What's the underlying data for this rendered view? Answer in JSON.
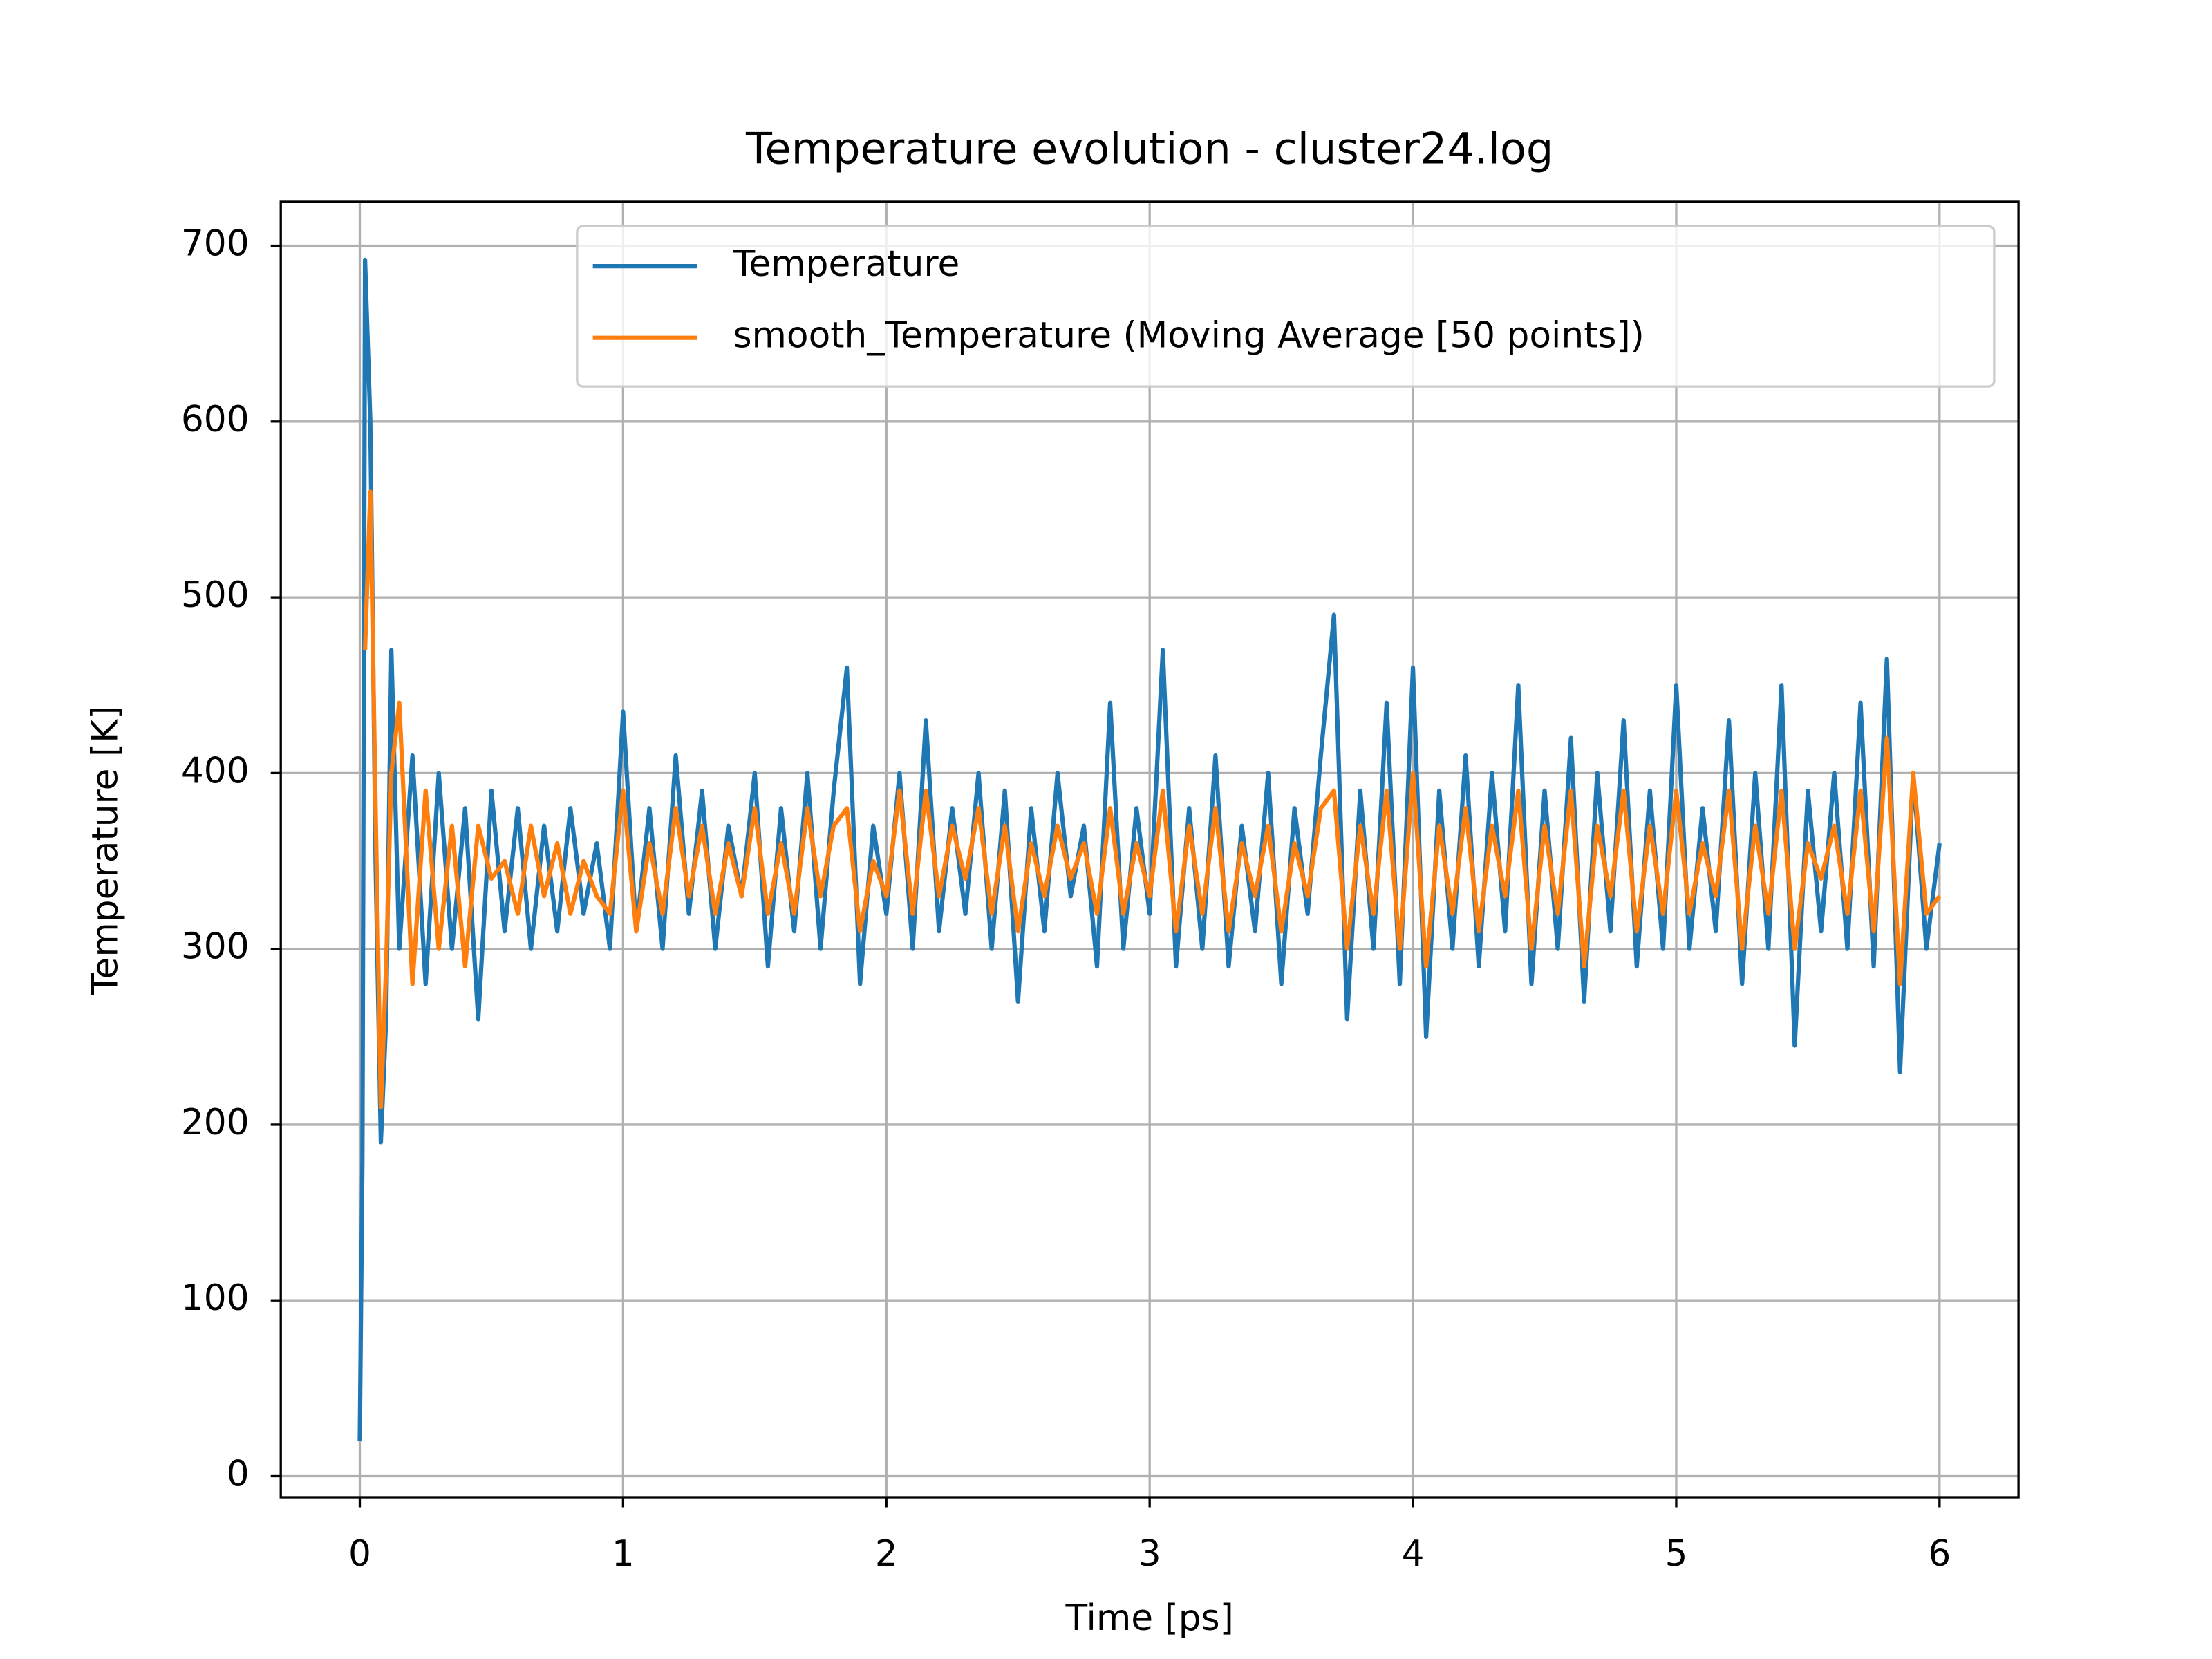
{
  "chart_data": {
    "type": "line",
    "title": "Temperature evolution - cluster24.log",
    "x_label": "Time [ps]",
    "y_label": "Temperature [K]",
    "xlim": [
      -0.3,
      6.3
    ],
    "ylim": [
      -12,
      725
    ],
    "xticks": [
      0,
      1,
      2,
      3,
      4,
      5,
      6
    ],
    "yticks": [
      0,
      100,
      200,
      300,
      400,
      500,
      600,
      700
    ],
    "grid": true,
    "legend": "upper right",
    "x": [
      0,
      0.01,
      0.02,
      0.04,
      0.06,
      0.08,
      0.1,
      0.12,
      0.15,
      0.2,
      0.25,
      0.3,
      0.35,
      0.4,
      0.45,
      0.5,
      0.55,
      0.6,
      0.65,
      0.7,
      0.75,
      0.8,
      0.85,
      0.9,
      0.95,
      1.0,
      1.05,
      1.1,
      1.15,
      1.2,
      1.25,
      1.3,
      1.35,
      1.4,
      1.45,
      1.5,
      1.55,
      1.6,
      1.65,
      1.7,
      1.75,
      1.8,
      1.85,
      1.9,
      1.95,
      2.0,
      2.05,
      2.1,
      2.15,
      2.2,
      2.25,
      2.3,
      2.35,
      2.4,
      2.45,
      2.5,
      2.55,
      2.6,
      2.65,
      2.7,
      2.75,
      2.8,
      2.85,
      2.9,
      2.95,
      3.0,
      3.05,
      3.1,
      3.15,
      3.2,
      3.25,
      3.3,
      3.35,
      3.4,
      3.45,
      3.5,
      3.55,
      3.6,
      3.65,
      3.7,
      3.75,
      3.8,
      3.85,
      3.9,
      3.95,
      4.0,
      4.05,
      4.1,
      4.15,
      4.2,
      4.25,
      4.3,
      4.35,
      4.4,
      4.45,
      4.5,
      4.55,
      4.6,
      4.65,
      4.7,
      4.75,
      4.8,
      4.85,
      4.9,
      4.95,
      5.0,
      5.05,
      5.1,
      5.15,
      5.2,
      5.25,
      5.3,
      5.35,
      5.4,
      5.45,
      5.5,
      5.55,
      5.6,
      5.65,
      5.7,
      5.75,
      5.8,
      5.85,
      5.9,
      5.95,
      6.0
    ],
    "series": [
      {
        "name": "Temperature",
        "color": "#1f77b4",
        "values": [
          20,
          180,
          692,
          600,
          350,
          190,
          260,
          470,
          300,
          410,
          280,
          400,
          300,
          380,
          260,
          390,
          310,
          380,
          300,
          370,
          310,
          380,
          320,
          360,
          300,
          435,
          310,
          380,
          300,
          410,
          320,
          390,
          300,
          370,
          330,
          400,
          290,
          380,
          310,
          400,
          300,
          390,
          460,
          280,
          370,
          320,
          400,
          300,
          430,
          310,
          380,
          320,
          400,
          300,
          390,
          270,
          380,
          310,
          400,
          330,
          370,
          290,
          440,
          300,
          380,
          320,
          470,
          290,
          380,
          300,
          410,
          290,
          370,
          310,
          400,
          280,
          380,
          320,
          410,
          490,
          260,
          390,
          300,
          440,
          280,
          460,
          250,
          390,
          300,
          410,
          290,
          400,
          310,
          450,
          280,
          390,
          300,
          420,
          270,
          400,
          310,
          430,
          290,
          390,
          300,
          450,
          300,
          380,
          310,
          430,
          280,
          400,
          300,
          450,
          245,
          390,
          310,
          400,
          300,
          440,
          290,
          465,
          230,
          400,
          300,
          360
        ]
      },
      {
        "name": "smooth_Temperature (Moving Average [50 points])",
        "color": "#ff7f0e",
        "values": [
          null,
          null,
          470,
          560,
          380,
          210,
          290,
          400,
          440,
          280,
          390,
          300,
          370,
          290,
          370,
          340,
          350,
          320,
          370,
          330,
          360,
          320,
          350,
          330,
          320,
          390,
          310,
          360,
          320,
          380,
          330,
          370,
          320,
          360,
          330,
          380,
          320,
          360,
          320,
          380,
          330,
          370,
          380,
          310,
          350,
          330,
          390,
          320,
          390,
          330,
          370,
          340,
          380,
          320,
          370,
          310,
          360,
          330,
          370,
          340,
          360,
          320,
          380,
          320,
          360,
          330,
          390,
          310,
          370,
          320,
          380,
          310,
          360,
          330,
          370,
          310,
          360,
          330,
          380,
          390,
          300,
          370,
          320,
          390,
          300,
          400,
          290,
          370,
          320,
          380,
          310,
          370,
          330,
          390,
          300,
          370,
          320,
          390,
          290,
          370,
          330,
          390,
          310,
          370,
          320,
          390,
          320,
          360,
          330,
          390,
          300,
          370,
          320,
          390,
          300,
          360,
          340,
          370,
          320,
          390,
          310,
          420,
          280,
          400,
          320,
          330
        ]
      }
    ]
  }
}
